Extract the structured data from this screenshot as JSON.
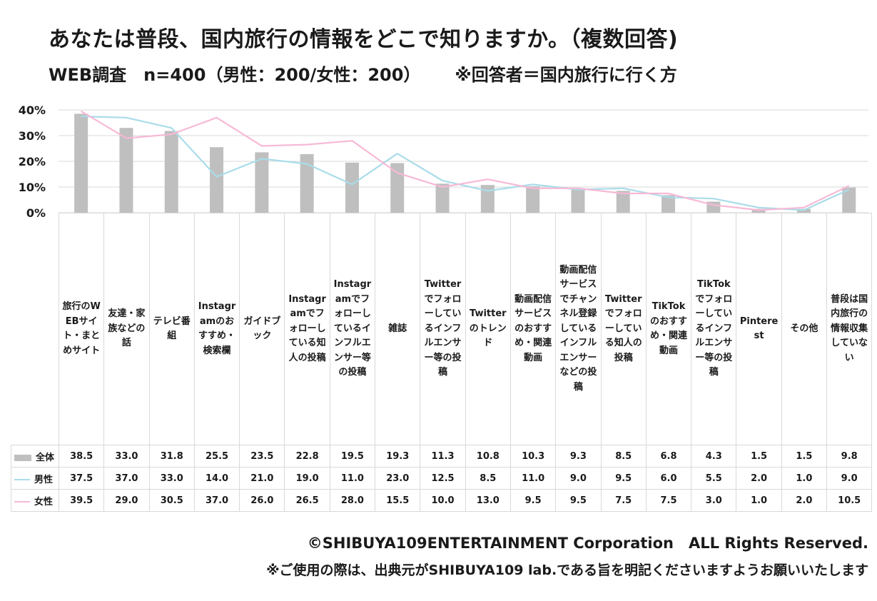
{
  "title": "あなたは普段、国内旅行の情報をどこで知りますか。（複数回答)",
  "subtitle": {
    "survey": "WEB調査　n=400（男性：200/女性：200）",
    "note": "※回答者＝国内旅行に行く方"
  },
  "footer": {
    "copyright": "©SHIBUYA109ENTERTAINMENT Corporation　ALL Rights Reserved.",
    "notice": "※ご使用の際は、出典元がSHIBUYA109 lab.である旨を明記くださいますようお願いいたします"
  },
  "colors": {
    "total": "#bfbfbf",
    "male": "#a9dcea",
    "female": "#f7b9d6",
    "grid": "#d9d9d9"
  },
  "chart_data": {
    "type": "bar",
    "ylim": [
      0,
      40
    ],
    "yticks": [
      "0%",
      "10%",
      "20%",
      "30%",
      "40%"
    ],
    "grid": true,
    "categories": [
      "旅行のWEBサイト・まとめサイト",
      "友達・家族などの話",
      "テレビ番組",
      "Instagramのおすすめ・検索欄",
      "ガイドブック",
      "Instagramでフォローしている知人の投稿",
      "Instagramでフォローしているインフルエンサー等の投稿",
      "雑誌",
      "Twitterでフォローしているインフルエンサー等の投稿",
      "Twitterのトレンド",
      "動画配信サービスのおすすめ・関連動画",
      "動画配信サービスでチャンネル登録しているインフルエンサーなどの投稿",
      "Twitterでフォローしている知人の投稿",
      "TikTokのおすすめ・関連動画",
      "TikTokでフォローしているインフルエンサー等の投稿",
      "Pinterest",
      "その他",
      "普段は国内旅行の情報収集していない"
    ],
    "series": [
      {
        "name": "全体",
        "type": "bar",
        "values": [
          38.5,
          33.0,
          31.8,
          25.5,
          23.5,
          22.8,
          19.5,
          19.3,
          11.3,
          10.8,
          10.3,
          9.3,
          8.5,
          6.8,
          4.3,
          1.5,
          1.5,
          9.8
        ]
      },
      {
        "name": "男性",
        "type": "line",
        "values": [
          37.5,
          37.0,
          33.0,
          14.0,
          21.0,
          19.0,
          11.0,
          23.0,
          12.5,
          8.5,
          11.0,
          9.0,
          9.5,
          6.0,
          5.5,
          2.0,
          1.0,
          9.0
        ]
      },
      {
        "name": "女性",
        "type": "line",
        "values": [
          39.5,
          29.0,
          30.5,
          37.0,
          26.0,
          26.5,
          28.0,
          15.5,
          10.0,
          13.0,
          9.5,
          9.5,
          7.5,
          7.5,
          3.0,
          1.0,
          2.0,
          10.5
        ]
      }
    ]
  }
}
